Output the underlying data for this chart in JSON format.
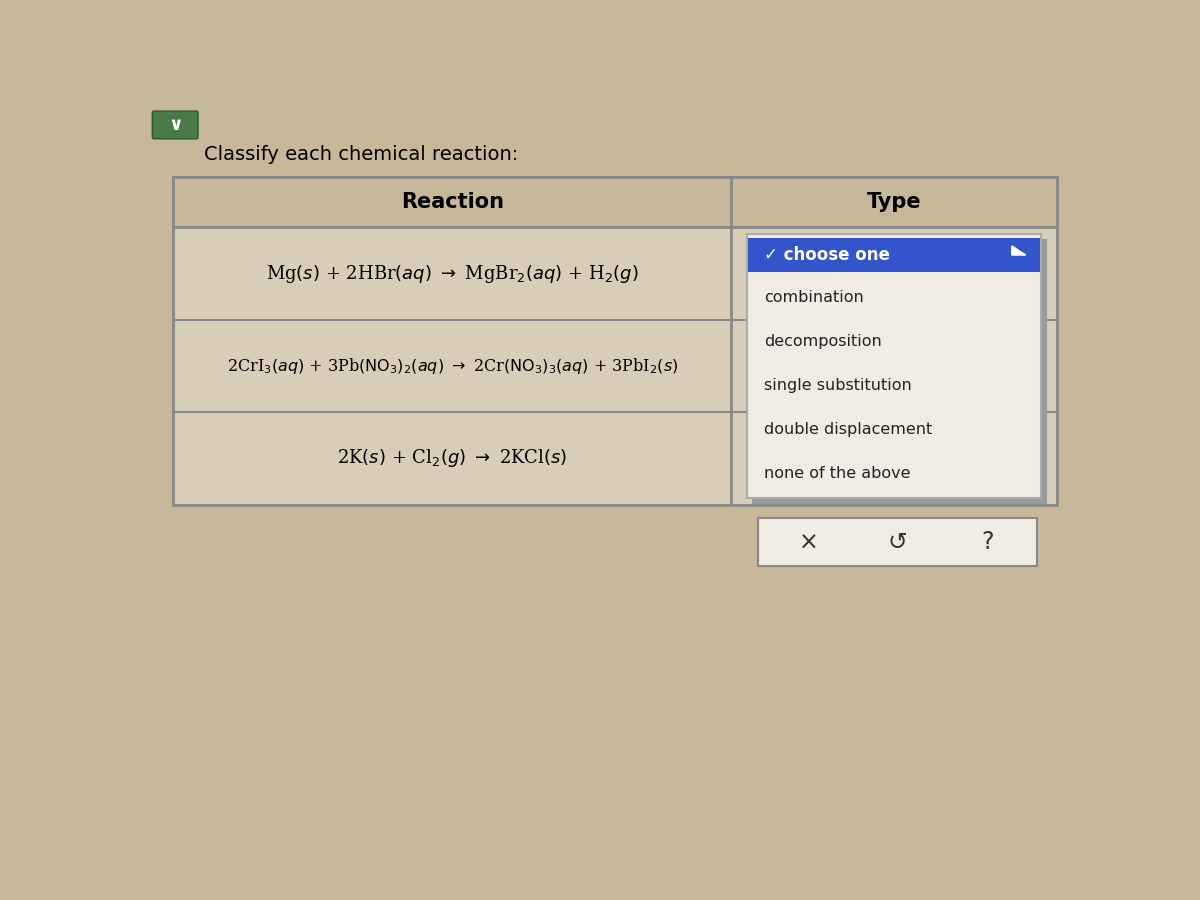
{
  "title": "Classify each chemical reaction:",
  "bg_color": "#c8b89a",
  "table_bg": "#d4c5a9",
  "header_bg": "#c8b89a",
  "table_border": "#888888",
  "header_text": [
    "Reaction",
    "Type"
  ],
  "dropdown_selected": "✓ choose one",
  "dropdown_options": [
    "combination",
    "decomposition",
    "single substitution",
    "double displacement",
    "none of the above"
  ],
  "dropdown_selected_bg": "#3355cc",
  "dropdown_selected_fg": "#ffffff",
  "dropdown_bg": "#f0ece4",
  "dropdown_border": "#aaaaaa",
  "button_icons": [
    "×",
    "↺",
    "?"
  ],
  "button_bg": "#f0ece4",
  "button_border": "#888888",
  "green_btn_color": "#4a7a4a",
  "green_btn_edge": "#2a5a2a"
}
